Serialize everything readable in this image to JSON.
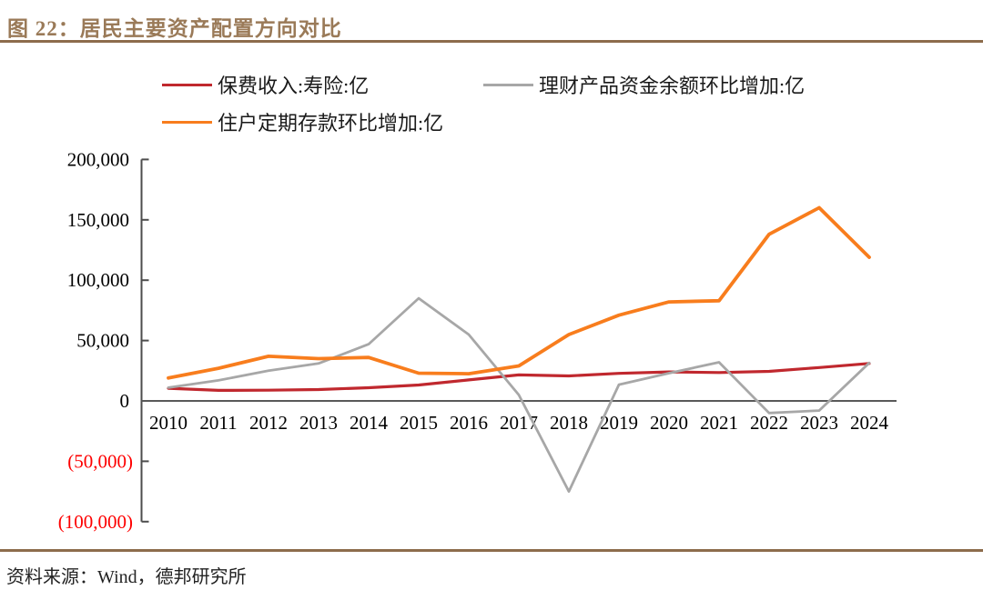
{
  "title": "图 22：居民主要资产配置方向对比",
  "source": "资料来源：Wind，德邦研究所",
  "colors": {
    "title_text": "#9a7a58",
    "accent_rule": "#8d6c4c",
    "axis": "#4d4d4d",
    "zero_line": "#595959",
    "tick_label": "#000000",
    "negative_tick_label": "#fe0000",
    "red_series": "#c0282e",
    "gray_series": "#a7a7a7",
    "orange_series": "#f87d1d"
  },
  "chart_data": {
    "type": "line",
    "title": "",
    "xlabel": "",
    "ylabel": "",
    "grid": false,
    "legend_position": "top",
    "categories": [
      "2010",
      "2011",
      "2012",
      "2013",
      "2014",
      "2015",
      "2016",
      "2017",
      "2018",
      "2019",
      "2020",
      "2021",
      "2022",
      "2023",
      "2024"
    ],
    "series": [
      {
        "name": "保费收入:寿险:亿",
        "color": "#c0282e",
        "values": [
          10500,
          8700,
          8900,
          9400,
          10900,
          13200,
          17400,
          21500,
          20700,
          22800,
          24000,
          23500,
          24500,
          27600,
          31000
        ]
      },
      {
        "name": "理财产品资金余额环比增加:亿",
        "color": "#a7a7a7",
        "values": [
          11000,
          17000,
          25000,
          31000,
          47000,
          85000,
          55000,
          5000,
          -75000,
          13500,
          23000,
          32000,
          -10000,
          -8000,
          31500
        ]
      },
      {
        "name": "住户定期存款环比增加:亿",
        "color": "#f87d1d",
        "values": [
          19000,
          27000,
          37000,
          35000,
          36000,
          23000,
          22500,
          29000,
          55000,
          71000,
          82000,
          83000,
          138000,
          160000,
          119000
        ]
      }
    ],
    "ylim": [
      -100000,
      200000
    ],
    "ytick_step": 50000,
    "yticks": [
      {
        "label": "200,000",
        "value": 200000,
        "negative": false
      },
      {
        "label": "150,000",
        "value": 150000,
        "negative": false
      },
      {
        "label": "100,000",
        "value": 100000,
        "negative": false
      },
      {
        "label": "50,000",
        "value": 50000,
        "negative": false
      },
      {
        "label": "0",
        "value": 0,
        "negative": false
      },
      {
        "label": "(50,000)",
        "value": -50000,
        "negative": true
      },
      {
        "label": "(100,000)",
        "value": -100000,
        "negative": true
      }
    ]
  }
}
